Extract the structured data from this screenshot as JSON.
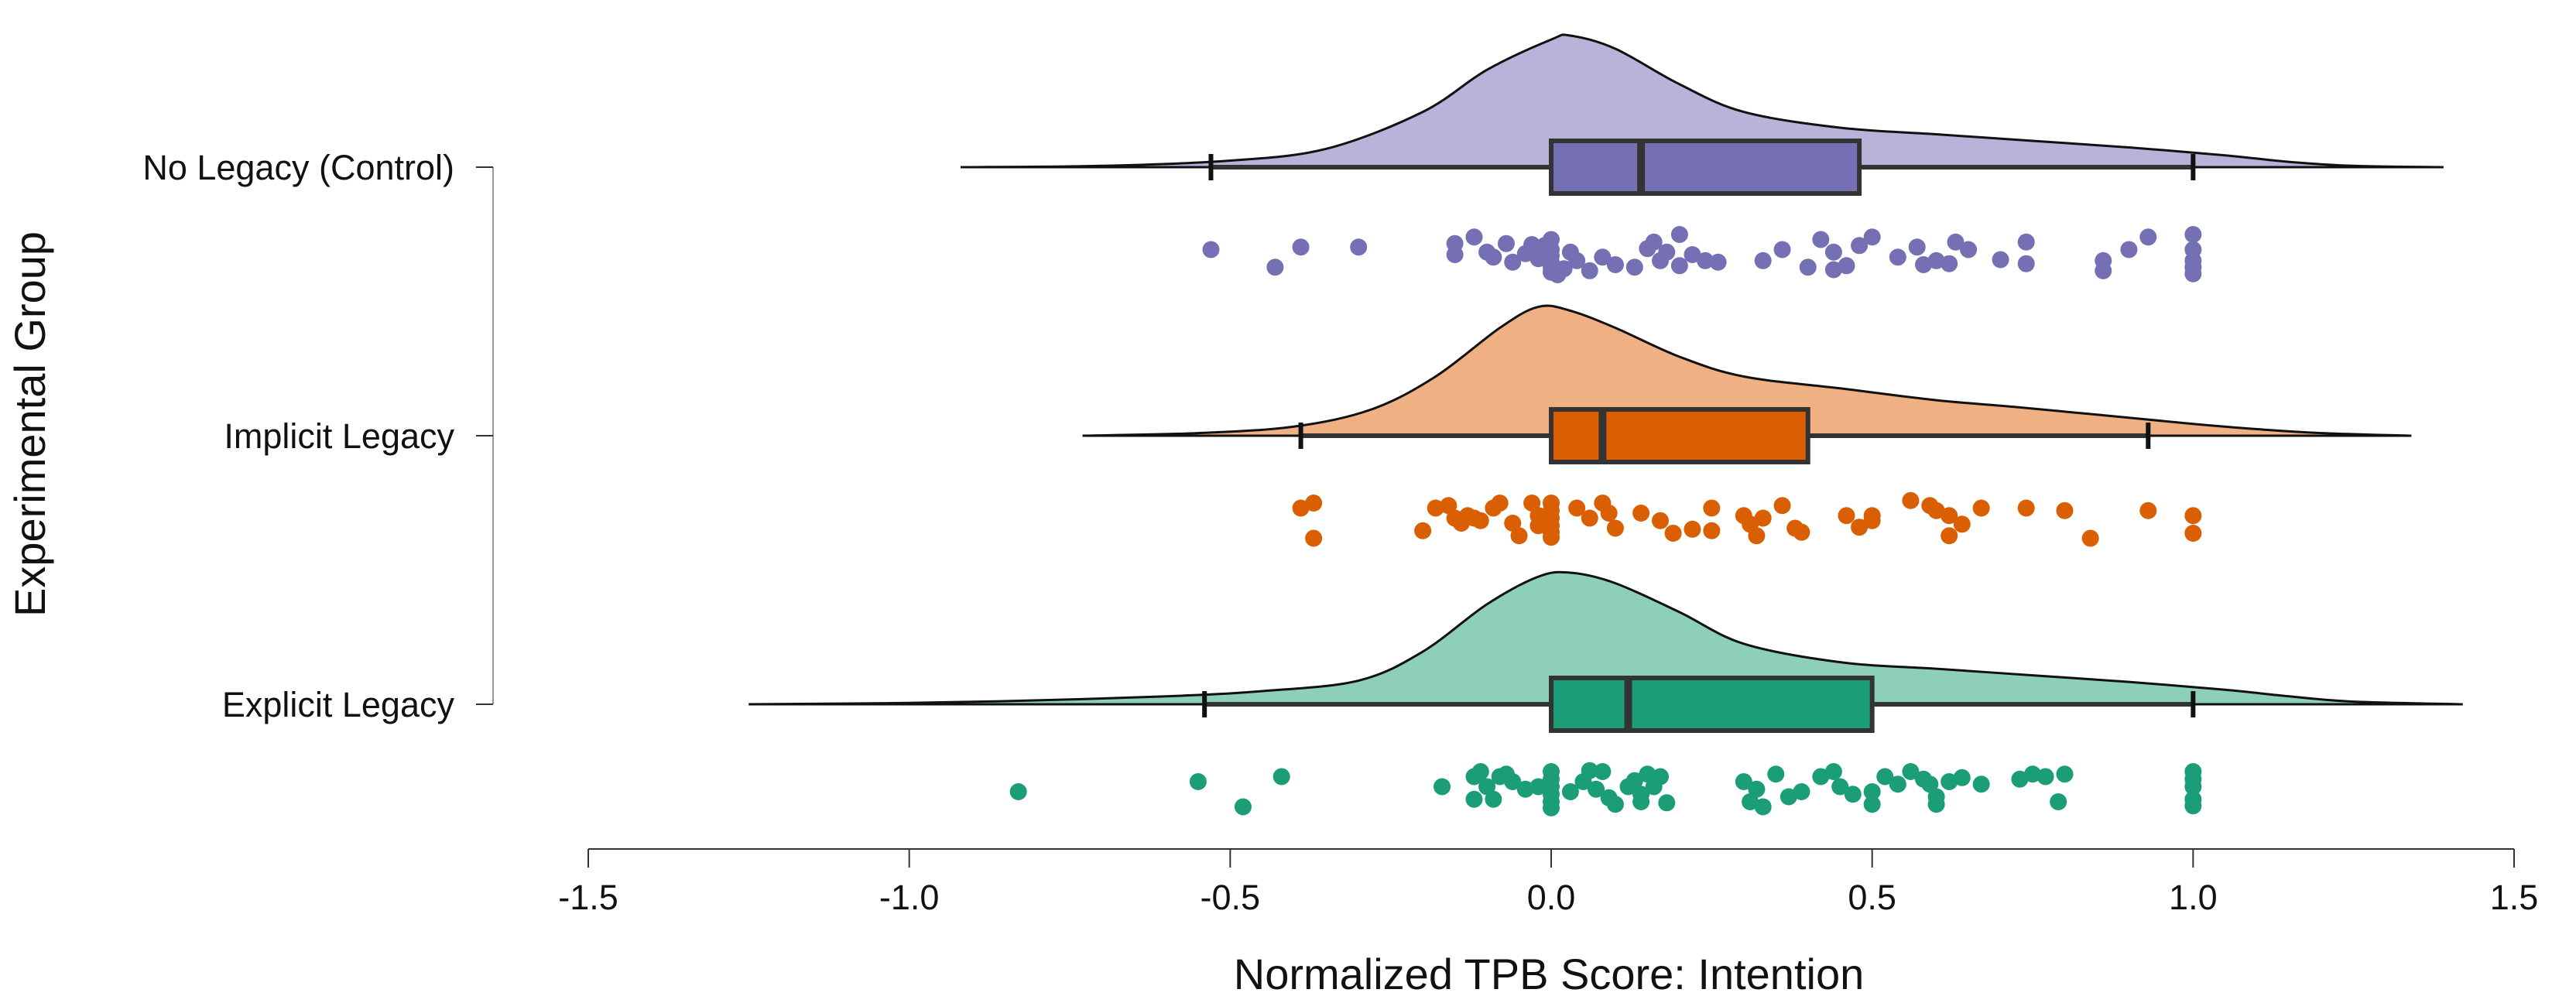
{
  "chart_data": {
    "type": "raincloud",
    "title": "",
    "xlabel": "Normalized TPB Score: Intention",
    "ylabel": "Experimental Group",
    "xlim": [
      -1.5,
      1.5
    ],
    "xticks": [
      -1.5,
      -1.0,
      -0.5,
      0.0,
      0.5,
      1.0,
      1.5
    ],
    "xtick_labels": [
      "-1.5",
      "-1.0",
      "-0.5",
      "0.0",
      "0.5",
      "1.0",
      "1.5"
    ],
    "grid": false,
    "series": [
      {
        "name": "No Legacy (Control)",
        "color": "#7570b3",
        "density_color": "#b8b4d9",
        "box": {
          "whisker_low": -0.53,
          "q1": 0.0,
          "median": 0.14,
          "q3": 0.48,
          "whisker_high": 1.0
        },
        "density": {
          "x": [
            -0.92,
            -0.7,
            -0.5,
            -0.35,
            -0.2,
            -0.1,
            0.0,
            0.03,
            0.1,
            0.2,
            0.3,
            0.45,
            0.6,
            0.75,
            0.9,
            1.05,
            1.15,
            1.25,
            1.39
          ],
          "y": [
            0.0,
            0.01,
            0.05,
            0.14,
            0.42,
            0.74,
            0.97,
            1.0,
            0.9,
            0.63,
            0.42,
            0.3,
            0.25,
            0.2,
            0.15,
            0.09,
            0.04,
            0.01,
            0.0
          ]
        },
        "points": [
          [
            -0.53,
            0.5
          ],
          [
            -0.43,
            0.85
          ],
          [
            -0.39,
            0.45
          ],
          [
            -0.3,
            0.45
          ],
          [
            -0.15,
            0.38
          ],
          [
            -0.15,
            0.6
          ],
          [
            -0.12,
            0.25
          ],
          [
            -0.1,
            0.55
          ],
          [
            -0.09,
            0.65
          ],
          [
            -0.07,
            0.38
          ],
          [
            -0.06,
            0.75
          ],
          [
            -0.04,
            0.58
          ],
          [
            -0.03,
            0.4
          ],
          [
            -0.02,
            0.68
          ],
          [
            -0.01,
            0.42
          ],
          [
            0.0,
            0.5
          ],
          [
            0.0,
            0.85
          ],
          [
            0.0,
            0.75
          ],
          [
            0.0,
            0.95
          ],
          [
            0.0,
            0.3
          ],
          [
            0.0,
            0.62
          ],
          [
            0.01,
            1.0
          ],
          [
            0.02,
            0.88
          ],
          [
            0.03,
            0.55
          ],
          [
            0.04,
            0.72
          ],
          [
            0.06,
            0.92
          ],
          [
            0.08,
            0.65
          ],
          [
            0.1,
            0.8
          ],
          [
            0.13,
            0.85
          ],
          [
            0.15,
            0.48
          ],
          [
            0.16,
            0.35
          ],
          [
            0.17,
            0.72
          ],
          [
            0.18,
            0.55
          ],
          [
            0.2,
            0.82
          ],
          [
            0.2,
            0.2
          ],
          [
            0.22,
            0.6
          ],
          [
            0.24,
            0.72
          ],
          [
            0.26,
            0.75
          ],
          [
            0.33,
            0.72
          ],
          [
            0.36,
            0.5
          ],
          [
            0.4,
            0.85
          ],
          [
            0.42,
            0.3
          ],
          [
            0.44,
            0.55
          ],
          [
            0.44,
            0.9
          ],
          [
            0.46,
            0.82
          ],
          [
            0.48,
            0.42
          ],
          [
            0.5,
            0.25
          ],
          [
            0.54,
            0.65
          ],
          [
            0.57,
            0.45
          ],
          [
            0.58,
            0.8
          ],
          [
            0.6,
            0.72
          ],
          [
            0.62,
            0.78
          ],
          [
            0.63,
            0.35
          ],
          [
            0.65,
            0.5
          ],
          [
            0.7,
            0.7
          ],
          [
            0.74,
            0.35
          ],
          [
            0.74,
            0.78
          ],
          [
            0.86,
            0.72
          ],
          [
            0.86,
            0.92
          ],
          [
            0.9,
            0.5
          ],
          [
            0.93,
            0.25
          ],
          [
            1.0,
            0.2
          ],
          [
            1.0,
            0.5
          ],
          [
            1.0,
            0.72
          ],
          [
            1.0,
            0.85
          ],
          [
            1.0,
            0.98
          ]
        ]
      },
      {
        "name": "Implicit Legacy",
        "color": "#d95f02",
        "density_color": "#efb084",
        "box": {
          "whisker_low": -0.39,
          "q1": 0.0,
          "median": 0.08,
          "q3": 0.4,
          "whisker_high": 0.93
        },
        "density": {
          "x": [
            -0.73,
            -0.55,
            -0.4,
            -0.28,
            -0.18,
            -0.08,
            -0.02,
            0.03,
            0.1,
            0.2,
            0.3,
            0.45,
            0.6,
            0.72,
            0.85,
            1.0,
            1.1,
            1.2,
            1.34
          ],
          "y": [
            0.0,
            0.02,
            0.07,
            0.2,
            0.45,
            0.82,
            0.98,
            0.95,
            0.82,
            0.6,
            0.45,
            0.36,
            0.27,
            0.22,
            0.16,
            0.09,
            0.05,
            0.02,
            0.0
          ]
        },
        "points": [
          [
            -0.39,
            0.3
          ],
          [
            -0.37,
            0.2
          ],
          [
            -0.37,
            0.9
          ],
          [
            -0.2,
            0.75
          ],
          [
            -0.18,
            0.3
          ],
          [
            -0.16,
            0.25
          ],
          [
            -0.15,
            0.5
          ],
          [
            -0.14,
            0.6
          ],
          [
            -0.13,
            0.45
          ],
          [
            -0.12,
            0.5
          ],
          [
            -0.11,
            0.55
          ],
          [
            -0.09,
            0.3
          ],
          [
            -0.08,
            0.2
          ],
          [
            -0.06,
            0.6
          ],
          [
            -0.05,
            0.85
          ],
          [
            -0.03,
            0.2
          ],
          [
            -0.02,
            0.45
          ],
          [
            -0.02,
            0.65
          ],
          [
            0.0,
            0.2
          ],
          [
            0.0,
            0.35
          ],
          [
            0.0,
            0.5
          ],
          [
            0.0,
            0.65
          ],
          [
            0.0,
            0.78
          ],
          [
            0.0,
            0.88
          ],
          [
            0.04,
            0.3
          ],
          [
            0.06,
            0.5
          ],
          [
            0.08,
            0.2
          ],
          [
            0.09,
            0.4
          ],
          [
            0.1,
            0.7
          ],
          [
            0.14,
            0.4
          ],
          [
            0.17,
            0.55
          ],
          [
            0.19,
            0.8
          ],
          [
            0.22,
            0.72
          ],
          [
            0.25,
            0.3
          ],
          [
            0.25,
            0.75
          ],
          [
            0.3,
            0.45
          ],
          [
            0.31,
            0.62
          ],
          [
            0.32,
            0.85
          ],
          [
            0.33,
            0.5
          ],
          [
            0.36,
            0.25
          ],
          [
            0.38,
            0.7
          ],
          [
            0.39,
            0.78
          ],
          [
            0.46,
            0.45
          ],
          [
            0.48,
            0.68
          ],
          [
            0.5,
            0.55
          ],
          [
            0.5,
            0.45
          ],
          [
            0.56,
            0.15
          ],
          [
            0.59,
            0.25
          ],
          [
            0.6,
            0.35
          ],
          [
            0.62,
            0.45
          ],
          [
            0.62,
            0.85
          ],
          [
            0.64,
            0.62
          ],
          [
            0.67,
            0.3
          ],
          [
            0.74,
            0.3
          ],
          [
            0.8,
            0.35
          ],
          [
            0.84,
            0.9
          ],
          [
            0.93,
            0.35
          ],
          [
            1.0,
            0.45
          ],
          [
            1.0,
            0.8
          ]
        ]
      },
      {
        "name": "Explicit Legacy",
        "color": "#1b9e77",
        "density_color": "#8ecfb8",
        "box": {
          "whisker_low": -0.54,
          "q1": 0.0,
          "median": 0.12,
          "q3": 0.5,
          "whisker_high": 1.0
        },
        "density": {
          "x": [
            -1.25,
            -1.0,
            -0.8,
            -0.6,
            -0.45,
            -0.3,
            -0.2,
            -0.1,
            -0.02,
            0.03,
            0.1,
            0.2,
            0.3,
            0.45,
            0.6,
            0.75,
            0.9,
            1.05,
            1.15,
            1.25,
            1.42
          ],
          "y": [
            0.0,
            0.01,
            0.03,
            0.06,
            0.1,
            0.18,
            0.4,
            0.76,
            0.97,
            1.0,
            0.92,
            0.7,
            0.46,
            0.32,
            0.27,
            0.22,
            0.17,
            0.11,
            0.06,
            0.02,
            0.0
          ]
        },
        "points": [
          [
            -0.83,
            0.6
          ],
          [
            -0.55,
            0.4
          ],
          [
            -0.48,
            0.9
          ],
          [
            -0.42,
            0.3
          ],
          [
            -0.17,
            0.5
          ],
          [
            -0.12,
            0.3
          ],
          [
            -0.12,
            0.75
          ],
          [
            -0.11,
            0.2
          ],
          [
            -0.1,
            0.5
          ],
          [
            -0.09,
            0.75
          ],
          [
            -0.08,
            0.3
          ],
          [
            -0.07,
            0.25
          ],
          [
            -0.06,
            0.4
          ],
          [
            -0.04,
            0.55
          ],
          [
            -0.02,
            0.5
          ],
          [
            0.0,
            0.2
          ],
          [
            0.0,
            0.35
          ],
          [
            0.0,
            0.5
          ],
          [
            0.0,
            0.65
          ],
          [
            0.0,
            0.8
          ],
          [
            0.0,
            0.92
          ],
          [
            0.03,
            0.6
          ],
          [
            0.05,
            0.4
          ],
          [
            0.06,
            0.18
          ],
          [
            0.07,
            0.55
          ],
          [
            0.08,
            0.2
          ],
          [
            0.09,
            0.72
          ],
          [
            0.1,
            0.85
          ],
          [
            0.12,
            0.5
          ],
          [
            0.13,
            0.38
          ],
          [
            0.14,
            0.65
          ],
          [
            0.14,
            0.8
          ],
          [
            0.15,
            0.25
          ],
          [
            0.16,
            0.5
          ],
          [
            0.17,
            0.3
          ],
          [
            0.18,
            0.82
          ],
          [
            0.3,
            0.4
          ],
          [
            0.31,
            0.8
          ],
          [
            0.32,
            0.55
          ],
          [
            0.33,
            0.9
          ],
          [
            0.35,
            0.25
          ],
          [
            0.37,
            0.7
          ],
          [
            0.39,
            0.6
          ],
          [
            0.42,
            0.3
          ],
          [
            0.44,
            0.2
          ],
          [
            0.45,
            0.5
          ],
          [
            0.47,
            0.65
          ],
          [
            0.5,
            0.85
          ],
          [
            0.5,
            0.6
          ],
          [
            0.52,
            0.3
          ],
          [
            0.54,
            0.45
          ],
          [
            0.56,
            0.2
          ],
          [
            0.58,
            0.35
          ],
          [
            0.59,
            0.45
          ],
          [
            0.6,
            0.7
          ],
          [
            0.6,
            0.85
          ],
          [
            0.62,
            0.4
          ],
          [
            0.64,
            0.32
          ],
          [
            0.67,
            0.45
          ],
          [
            0.73,
            0.35
          ],
          [
            0.75,
            0.25
          ],
          [
            0.77,
            0.3
          ],
          [
            0.79,
            0.8
          ],
          [
            0.8,
            0.25
          ],
          [
            1.0,
            0.2
          ],
          [
            1.0,
            0.35
          ],
          [
            1.0,
            0.5
          ],
          [
            1.0,
            0.75
          ],
          [
            1.0,
            0.88
          ]
        ]
      }
    ]
  }
}
